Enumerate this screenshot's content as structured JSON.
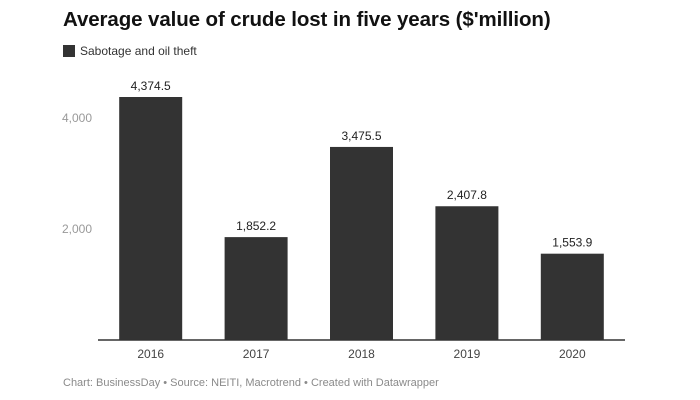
{
  "chart_data": {
    "type": "bar",
    "title": "Average value of crude lost in five years ($'million)",
    "legend": [
      {
        "name": "Sabotage and oil theft",
        "color": "#333333"
      }
    ],
    "categories": [
      "2016",
      "2017",
      "2018",
      "2019",
      "2020"
    ],
    "series": [
      {
        "name": "Sabotage and oil theft",
        "values": [
          4374.5,
          1852.2,
          3475.5,
          2407.8,
          1553.9
        ]
      }
    ],
    "value_labels": [
      "4,374.5",
      "1,852.2",
      "3,475.5",
      "2,407.8",
      "1,553.9"
    ],
    "yticks": [
      2000,
      4000
    ],
    "ytick_labels": [
      "2,000",
      "4,000"
    ],
    "ylim": [
      0,
      4700
    ],
    "xlabel": "",
    "ylabel": "",
    "grid": false,
    "legend_position": "top-left"
  },
  "footer": "Chart: BusinessDay • Source: NEITI, Macrotrend • Created with Datawrapper",
  "colors": {
    "bar": "#333333",
    "axis": "#333333",
    "tick_text": "#999999",
    "category_text": "#444444"
  }
}
